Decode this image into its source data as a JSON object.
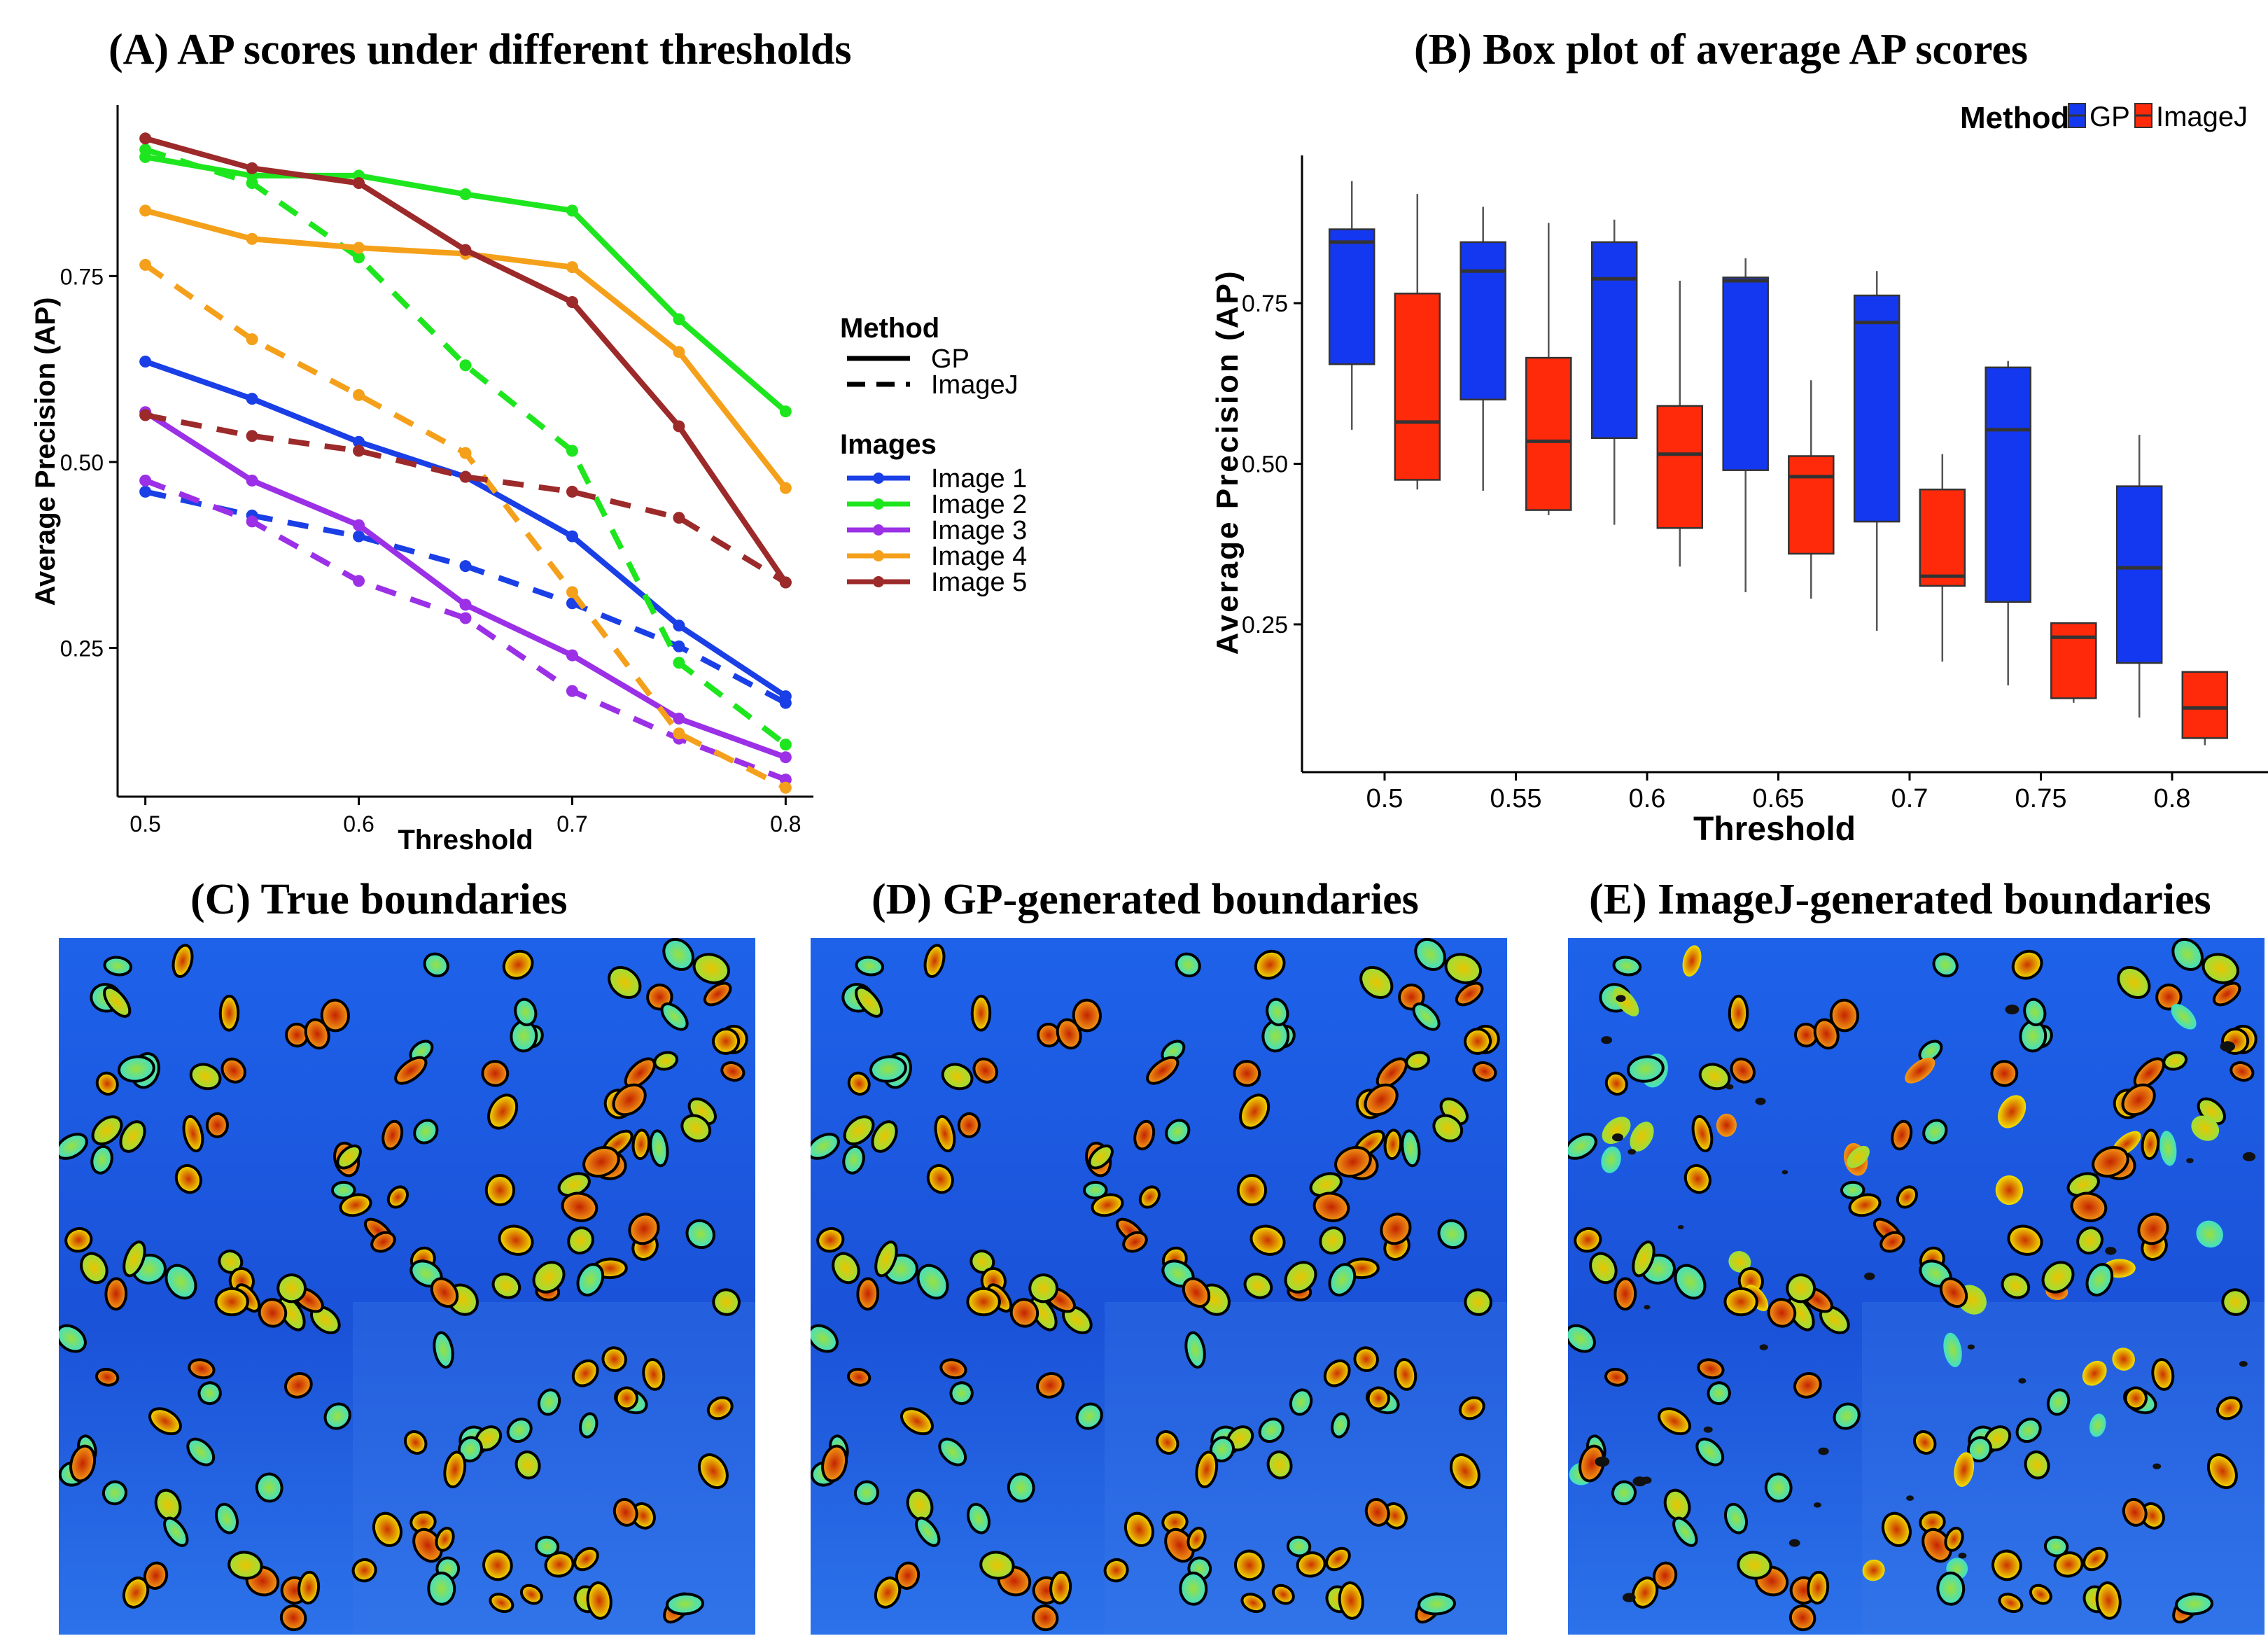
{
  "panels": {
    "a_title": "(A) AP scores under different thresholds",
    "b_title": "(B) Box plot of average AP scores",
    "c_title": "(C) True boundaries",
    "d_title": "(D) GP-generated boundaries",
    "e_title": "(E) ImageJ-generated boundaries"
  },
  "chart_data": [
    {
      "type": "line",
      "title": "(A) AP scores under different thresholds",
      "xlabel": "Threshold",
      "ylabel": "Average Precision (AP)",
      "x": [
        0.5,
        0.55,
        0.6,
        0.65,
        0.7,
        0.75,
        0.8
      ],
      "x_tick_labels": [
        "0.5",
        "0.6",
        "0.7",
        "0.8"
      ],
      "y_ticks": [
        0.25,
        0.5,
        0.75
      ],
      "y_tick_labels": [
        "0.25",
        "0.50",
        "0.75"
      ],
      "ylim": [
        0.05,
        0.98
      ],
      "xlim": [
        0.487,
        0.813
      ],
      "legend": {
        "method_title": "Method",
        "methods": [
          {
            "name": "GP",
            "dash": "solid"
          },
          {
            "name": "ImageJ",
            "dash": "dashed"
          }
        ],
        "images_title": "Images"
      },
      "series": [
        {
          "name": "Image 1",
          "color": "#1a3fe6",
          "method": "GP",
          "values": [
            0.635,
            0.585,
            0.527,
            0.48,
            0.4,
            0.28,
            0.185
          ]
        },
        {
          "name": "Image 1",
          "color": "#1a3fe6",
          "method": "ImageJ",
          "values": [
            0.46,
            0.428,
            0.4,
            0.36,
            0.31,
            0.252,
            0.176
          ]
        },
        {
          "name": "Image 2",
          "color": "#1ee61e",
          "method": "GP",
          "values": [
            0.91,
            0.885,
            0.885,
            0.86,
            0.838,
            0.692,
            0.568
          ]
        },
        {
          "name": "Image 2",
          "color": "#1ee61e",
          "method": "ImageJ",
          "values": [
            0.92,
            0.875,
            0.775,
            0.63,
            0.515,
            0.23,
            0.12
          ]
        },
        {
          "name": "Image 3",
          "color": "#9b30e6",
          "method": "GP",
          "values": [
            0.567,
            0.475,
            0.415,
            0.308,
            0.24,
            0.155,
            0.103
          ]
        },
        {
          "name": "Image 3",
          "color": "#9b30e6",
          "method": "ImageJ",
          "values": [
            0.475,
            0.42,
            0.34,
            0.29,
            0.192,
            0.128,
            0.073
          ]
        },
        {
          "name": "Image 4",
          "color": "#f5a01a",
          "method": "GP",
          "values": [
            0.838,
            0.8,
            0.788,
            0.78,
            0.762,
            0.648,
            0.465
          ]
        },
        {
          "name": "Image 4",
          "color": "#f5a01a",
          "method": "ImageJ",
          "values": [
            0.765,
            0.665,
            0.59,
            0.512,
            0.325,
            0.135,
            0.062
          ]
        },
        {
          "name": "Image 5",
          "color": "#9c2a2a",
          "method": "GP",
          "values": [
            0.935,
            0.895,
            0.875,
            0.785,
            0.715,
            0.548,
            0.338
          ]
        },
        {
          "name": "Image 5",
          "color": "#9c2a2a",
          "method": "ImageJ",
          "values": [
            0.563,
            0.535,
            0.515,
            0.48,
            0.46,
            0.425,
            0.338
          ]
        }
      ]
    },
    {
      "type": "box",
      "title": "(B) Box plot of average AP scores",
      "xlabel": "Threshold",
      "ylabel": "Average Precision (AP)",
      "categories": [
        "0.5",
        "0.55",
        "0.6",
        "0.65",
        "0.7",
        "0.75",
        "0.8"
      ],
      "y_ticks": [
        0.25,
        0.5,
        0.75
      ],
      "y_tick_labels": [
        "0.25",
        "0.50",
        "0.75"
      ],
      "ylim": [
        0.02,
        0.98
      ],
      "legend": {
        "title": "Method",
        "position": "top-right"
      },
      "series": [
        {
          "name": "GP",
          "color": "#1438f0",
          "boxes": [
            {
              "min": 0.553,
              "q1": 0.655,
              "median": 0.845,
              "q3": 0.865,
              "max": 0.94
            },
            {
              "min": 0.458,
              "q1": 0.6,
              "median": 0.8,
              "q3": 0.845,
              "max": 0.9
            },
            {
              "min": 0.405,
              "q1": 0.54,
              "median": 0.788,
              "q3": 0.845,
              "max": 0.88
            },
            {
              "min": 0.3,
              "q1": 0.49,
              "median": 0.785,
              "q3": 0.79,
              "max": 0.82
            },
            {
              "min": 0.24,
              "q1": 0.41,
              "median": 0.72,
              "q3": 0.762,
              "max": 0.8
            },
            {
              "min": 0.155,
              "q1": 0.285,
              "median": 0.553,
              "q3": 0.65,
              "max": 0.66
            },
            {
              "min": 0.105,
              "q1": 0.19,
              "median": 0.338,
              "q3": 0.465,
              "max": 0.545
            }
          ]
        },
        {
          "name": "ImageJ",
          "color": "#ff2a0a",
          "boxes": [
            {
              "min": 0.46,
              "q1": 0.475,
              "median": 0.565,
              "q3": 0.765,
              "max": 0.92
            },
            {
              "min": 0.42,
              "q1": 0.428,
              "median": 0.535,
              "q3": 0.665,
              "max": 0.875
            },
            {
              "min": 0.34,
              "q1": 0.4,
              "median": 0.515,
              "q3": 0.59,
              "max": 0.785
            },
            {
              "min": 0.29,
              "q1": 0.36,
              "median": 0.48,
              "q3": 0.512,
              "max": 0.63
            },
            {
              "min": 0.192,
              "q1": 0.31,
              "median": 0.325,
              "q3": 0.46,
              "max": 0.515
            },
            {
              "min": 0.128,
              "q1": 0.135,
              "median": 0.23,
              "q3": 0.252,
              "max": 0.252
            },
            {
              "min": 0.062,
              "q1": 0.073,
              "median": 0.12,
              "q3": 0.176,
              "max": 0.176
            }
          ]
        }
      ]
    }
  ]
}
